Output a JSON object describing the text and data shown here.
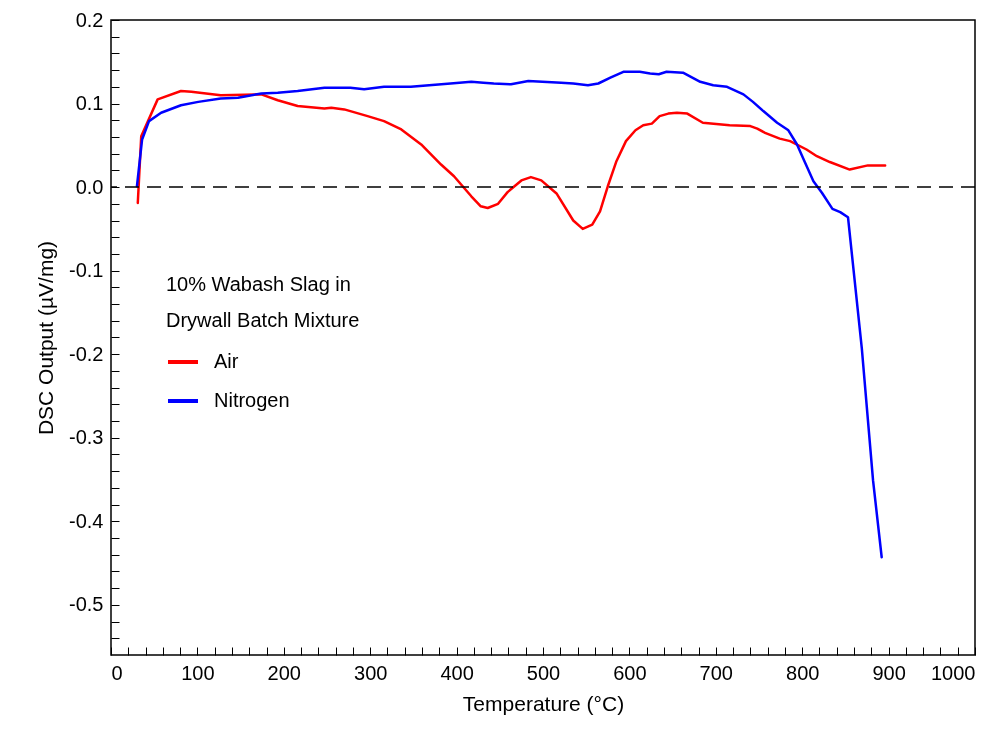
{
  "chart_data": {
    "type": "line",
    "xlabel": "Temperature (°C)",
    "ylabel": "DSC Output (µV/mg)",
    "legend_title": "10% Wabash Slag in Drywall Batch Mixture",
    "legend": "left",
    "grid": false,
    "line_style": "solid",
    "marker": "none",
    "xlim": [
      0,
      1000
    ],
    "ylim": [
      -0.56,
      0.2
    ],
    "xticks": [
      0,
      {
        "value": 20,
        "label": null
      },
      {
        "value": 40,
        "label": null
      },
      {
        "value": 60,
        "label": null
      },
      {
        "value": 80,
        "label": null
      },
      100,
      {
        "value": 120,
        "label": null
      },
      {
        "value": 140,
        "label": null
      },
      {
        "value": 160,
        "label": null
      },
      {
        "value": 180,
        "label": null
      },
      200,
      {
        "value": 220,
        "label": null
      },
      {
        "value": 240,
        "label": null
      },
      {
        "value": 260,
        "label": null
      },
      {
        "value": 280,
        "label": null
      },
      300,
      {
        "value": 320,
        "label": null
      },
      {
        "value": 340,
        "label": null
      },
      {
        "value": 360,
        "label": null
      },
      {
        "value": 380,
        "label": null
      },
      400,
      {
        "value": 420,
        "label": null
      },
      {
        "value": 440,
        "label": null
      },
      {
        "value": 460,
        "label": null
      },
      {
        "value": 480,
        "label": null
      },
      500,
      {
        "value": 520,
        "label": null
      },
      {
        "value": 540,
        "label": null
      },
      {
        "value": 560,
        "label": null
      },
      {
        "value": 580,
        "label": null
      },
      600,
      {
        "value": 620,
        "label": null
      },
      {
        "value": 640,
        "label": null
      },
      {
        "value": 660,
        "label": null
      },
      {
        "value": 680,
        "label": null
      },
      700,
      {
        "value": 720,
        "label": null
      },
      {
        "value": 740,
        "label": null
      },
      {
        "value": 760,
        "label": null
      },
      {
        "value": 780,
        "label": null
      },
      800,
      {
        "value": 820,
        "label": null
      },
      {
        "value": 840,
        "label": null
      },
      {
        "value": 860,
        "label": null
      },
      {
        "value": 880,
        "label": null
      },
      900,
      {
        "value": 920,
        "label": null
      },
      {
        "value": 940,
        "label": null
      },
      {
        "value": 960,
        "label": null
      },
      {
        "value": 980,
        "label": null
      },
      1000
    ],
    "yticks": [
      {
        "value": -0.54,
        "label": null
      },
      {
        "value": -0.52,
        "label": null
      },
      -0.5,
      {
        "value": -0.48,
        "label": null
      },
      {
        "value": -0.46,
        "label": null
      },
      {
        "value": -0.44,
        "label": null
      },
      {
        "value": -0.42,
        "label": null
      },
      -0.4,
      {
        "value": -0.38,
        "label": null
      },
      {
        "value": -0.36,
        "label": null
      },
      {
        "value": -0.34,
        "label": null
      },
      {
        "value": -0.32,
        "label": null
      },
      -0.3,
      {
        "value": -0.28,
        "label": null
      },
      {
        "value": -0.26,
        "label": null
      },
      {
        "value": -0.24,
        "label": null
      },
      {
        "value": -0.22,
        "label": null
      },
      -0.2,
      {
        "value": -0.18,
        "label": null
      },
      {
        "value": -0.16,
        "label": null
      },
      {
        "value": -0.14,
        "label": null
      },
      {
        "value": -0.12,
        "label": null
      },
      -0.1,
      {
        "value": -0.08,
        "label": null
      },
      {
        "value": -0.06,
        "label": null
      },
      {
        "value": -0.04,
        "label": null
      },
      {
        "value": -0.02,
        "label": null
      },
      {
        "value": 0,
        "label": "0.0"
      },
      {
        "value": 0.02,
        "label": null
      },
      {
        "value": 0.04,
        "label": null
      },
      {
        "value": 0.06,
        "label": null
      },
      {
        "value": 0.08,
        "label": null
      },
      0.1,
      {
        "value": 0.12,
        "label": null
      },
      {
        "value": 0.14,
        "label": null
      },
      {
        "value": 0.16,
        "label": null
      },
      {
        "value": 0.18,
        "label": null
      },
      0.2
    ],
    "ref_lines": [
      {
        "axis": "y",
        "value": 0,
        "color": "#000000",
        "line_style": "dashed"
      }
    ],
    "series": [
      {
        "name": "Air",
        "color": "#ff0000",
        "x": [
          31,
          35,
          54,
          81,
          93,
          127,
          174,
          193,
          216,
          247,
          255,
          270,
          297,
          316,
          336,
          359,
          382,
          397,
          417,
          428,
          436,
          448,
          459,
          475,
          486,
          498,
          516,
          535,
          546,
          557,
          566,
          575,
          585,
          596,
          607,
          616,
          626,
          635,
          645,
          655,
          667,
          685,
          716,
          740,
          748,
          757,
          774,
          786,
          805,
          817,
          832,
          855,
          876,
          896
        ],
        "values": [
          -0.019,
          0.061,
          0.105,
          0.115,
          0.114,
          0.11,
          0.111,
          0.104,
          0.097,
          0.094,
          0.095,
          0.093,
          0.085,
          0.079,
          0.069,
          0.051,
          0.027,
          0.013,
          -0.011,
          -0.023,
          -0.025,
          -0.02,
          -0.006,
          0.008,
          0.012,
          0.008,
          -0.008,
          -0.04,
          -0.05,
          -0.045,
          -0.029,
          0.001,
          0.031,
          0.055,
          0.068,
          0.074,
          0.076,
          0.085,
          0.088,
          0.089,
          0.088,
          0.077,
          0.074,
          0.073,
          0.07,
          0.065,
          0.058,
          0.055,
          0.045,
          0.037,
          0.03,
          0.021,
          0.026,
          0.026
        ]
      },
      {
        "name": "Nitrogen",
        "color": "#0000ff",
        "x": [
          30,
          36,
          44,
          58,
          81,
          101,
          127,
          147,
          174,
          193,
          216,
          247,
          277,
          293,
          316,
          347,
          393,
          417,
          431,
          443,
          463,
          483,
          521,
          535,
          552,
          564,
          578,
          593,
          612,
          624,
          634,
          643,
          662,
          682,
          697,
          713,
          732,
          743,
          755,
          771,
          784,
          794,
          803,
          813,
          823,
          835,
          844,
          853,
          869,
          882,
          892
        ],
        "values": [
          0.001,
          0.057,
          0.079,
          0.089,
          0.098,
          0.102,
          0.106,
          0.107,
          0.112,
          0.113,
          0.115,
          0.119,
          0.119,
          0.117,
          0.12,
          0.12,
          0.124,
          0.126,
          0.125,
          0.124,
          0.123,
          0.127,
          0.125,
          0.124,
          0.122,
          0.124,
          0.131,
          0.138,
          0.138,
          0.136,
          0.135,
          0.138,
          0.137,
          0.126,
          0.122,
          0.12,
          0.111,
          0.102,
          0.091,
          0.077,
          0.068,
          0.051,
          0.03,
          0.007,
          -0.007,
          -0.026,
          -0.03,
          -0.036,
          -0.193,
          -0.351,
          -0.443
        ]
      }
    ]
  }
}
